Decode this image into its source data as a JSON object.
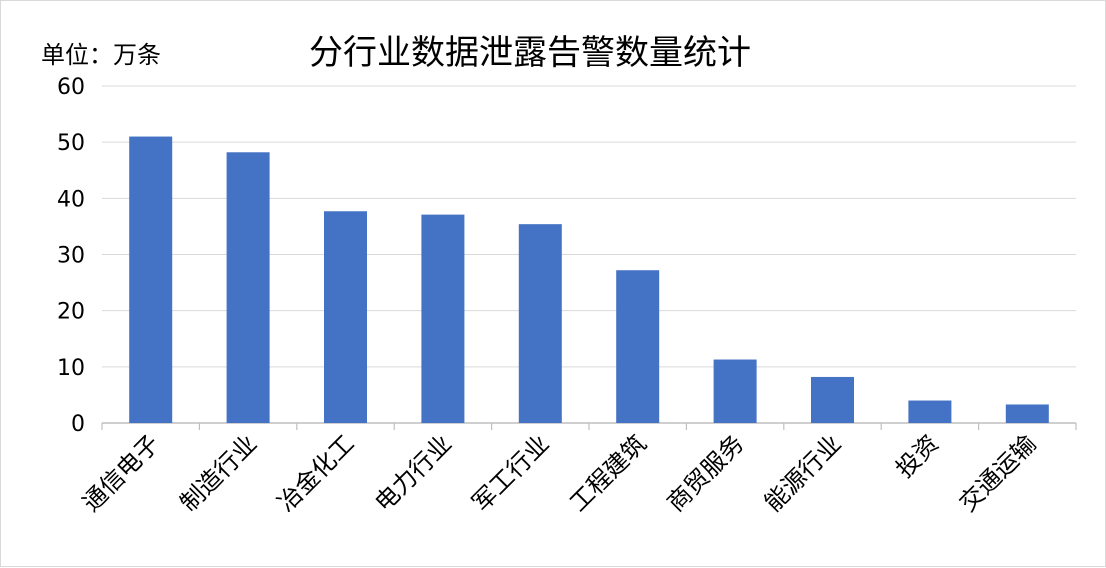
{
  "chart_data": {
    "type": "bar",
    "title": "分行业数据泄露告警数量统计",
    "unit_label": "单位：万条",
    "xlabel": "",
    "ylabel": "",
    "categories": [
      "通信电子",
      "制造行业",
      "冶金化工",
      "电力行业",
      "军工行业",
      "工程建筑",
      "商贸服务",
      "能源行业",
      "投资",
      "交通运输"
    ],
    "values": [
      51,
      48.2,
      37.7,
      37.1,
      35.4,
      27.2,
      11.3,
      8.2,
      4.0,
      3.3
    ],
    "ylim": [
      0,
      60
    ],
    "yticks": [
      0,
      10,
      20,
      30,
      40,
      50,
      60
    ],
    "grid": true,
    "legend": "none",
    "bar_color": "#4472C4",
    "gridline_color": "#d9d9d9"
  }
}
